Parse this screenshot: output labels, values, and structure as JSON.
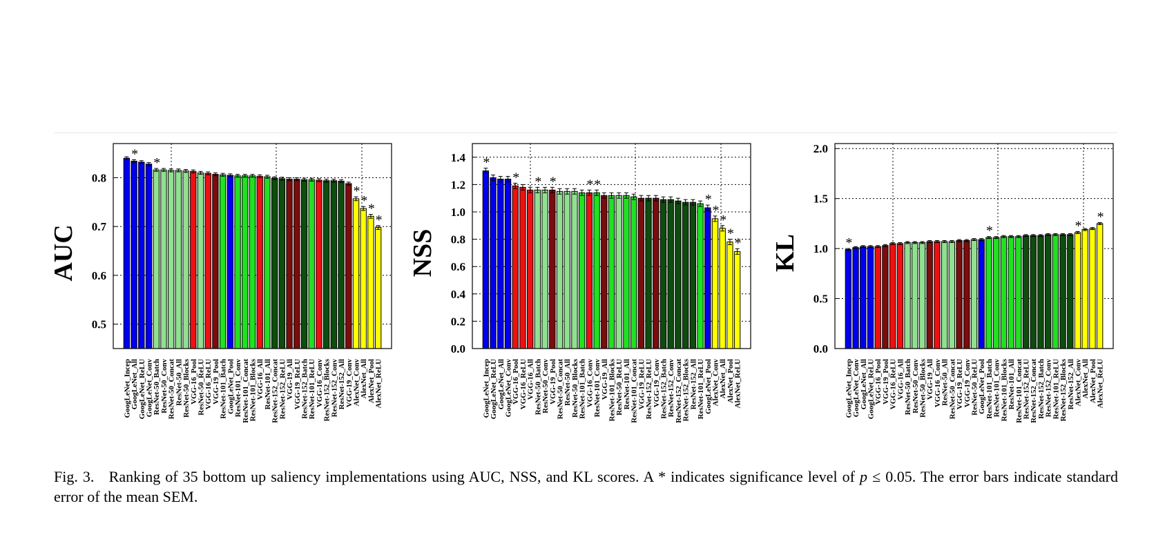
{
  "caption": {
    "fig_label": "Fig. 3.",
    "text_before": "Ranking of 35 bottom up saliency implementations using AUC, NSS, and KL scores. A * indicates significance level of",
    "var": "p",
    "math": " ≤ 0.05",
    "text_after": ". The error bars indicate standard error of the mean SEM."
  },
  "colors": {
    "GoogLeNet": "#0000ee",
    "VGG-16": "#ee1111",
    "VGG-19": "#7a0d0d",
    "ResNet-50": "#90e090",
    "ResNet-101": "#22e022",
    "ResNet-152": "#0d4d0d",
    "AlexNet": "#ffff00"
  },
  "chart_data": [
    {
      "type": "bar",
      "ylabel": "AUC",
      "ylim": [
        0.45,
        0.87
      ],
      "yticks": [
        "0.5",
        "0.6",
        "0.7",
        "0.8"
      ],
      "grid": "dotted",
      "categories": [
        "GoogLeNet_Incep",
        "GoogLeNet_All",
        "GoogLeNet_ReLU",
        "GoogLeNet_Conv",
        "ResNet-50_Batch",
        "ResNet-50_Conv",
        "ResNet-50_Concat",
        "ResNet-50_All",
        "ResNet-50_Blocks",
        "VGG-16_Pool",
        "ResNet-50_ReLU",
        "VGG-16_ReLU",
        "VGG-19_Pool",
        "ResNet-101_Batch",
        "GoogLeNet_Pool",
        "ResNet-101_Conv",
        "ResNet-101_Concat",
        "ResNet-101_Blocks",
        "VGG-16_All",
        "ResNet-101_All",
        "ResNet-152_Concat",
        "ResNet-152_ReLU",
        "VGG-19_All",
        "VGG-19_ReLU",
        "ResNet-152_Batch",
        "ResNet-101_ReLU",
        "VGG-16_Conv",
        "ResNet-152_Blocks",
        "ResNet-152_Conv",
        "ResNet-152_All",
        "VGG-19_Conv",
        "AlexNet_Conv",
        "AlexNet_All",
        "AlexNet_Pool",
        "AlexNet_ReLU"
      ],
      "values": [
        0.84,
        0.834,
        0.832,
        0.828,
        0.816,
        0.816,
        0.815,
        0.815,
        0.814,
        0.813,
        0.81,
        0.809,
        0.807,
        0.806,
        0.805,
        0.804,
        0.804,
        0.804,
        0.803,
        0.802,
        0.799,
        0.798,
        0.797,
        0.797,
        0.796,
        0.796,
        0.795,
        0.794,
        0.794,
        0.793,
        0.788,
        0.757,
        0.737,
        0.721,
        0.698
      ],
      "errors": [
        0.003,
        0.003,
        0.003,
        0.003,
        0.003,
        0.003,
        0.003,
        0.003,
        0.003,
        0.003,
        0.003,
        0.003,
        0.003,
        0.003,
        0.003,
        0.003,
        0.003,
        0.003,
        0.003,
        0.003,
        0.003,
        0.003,
        0.003,
        0.003,
        0.003,
        0.003,
        0.003,
        0.003,
        0.003,
        0.003,
        0.003,
        0.004,
        0.004,
        0.004,
        0.004
      ],
      "significant": [
        false,
        true,
        false,
        false,
        true,
        false,
        false,
        false,
        false,
        false,
        false,
        false,
        false,
        false,
        false,
        false,
        false,
        false,
        false,
        false,
        false,
        false,
        false,
        false,
        false,
        false,
        false,
        false,
        false,
        false,
        false,
        true,
        true,
        true,
        true
      ]
    },
    {
      "type": "bar",
      "ylabel": "NSS",
      "ylim": [
        0.0,
        1.5
      ],
      "yticks": [
        "0.0",
        "0.2",
        "0.4",
        "0.6",
        "0.8",
        "1.0",
        "1.2",
        "1.4"
      ],
      "grid": "dotted",
      "categories": [
        "GoogLeNet_Incep",
        "GoogLeNet_ReLU",
        "GoogLeNet_All",
        "GoogLeNet_Conv",
        "VGG-16_Pool",
        "VGG-16_ReLU",
        "VGG-16_All",
        "ResNet-50_Batch",
        "ResNet-50_Conv",
        "VGG-19_Pool",
        "ResNet-50_Concat",
        "ResNet-50_All",
        "ResNet-50_Blocks",
        "ResNet-101_Batch",
        "VGG-16_Conv",
        "ResNet-101_Conv",
        "VGG-19_All",
        "ResNet-101_Blocks",
        "ResNet-50_ReLU",
        "ResNet-101_All",
        "ResNet-101_Concat",
        "VGG-19_ReLU",
        "ResNet-152_ReLU",
        "VGG-19_Conv",
        "ResNet-152_Batch",
        "ResNet-152_Conv",
        "ResNet-152_Concat",
        "ResNet-152_Blocks",
        "ResNet-152_All",
        "ResNet-101_ReLU",
        "GoogLeNet_Pool",
        "AlexNet_Conv",
        "AlexNet_All",
        "AlexNet_Pool",
        "AlexNet_ReLU"
      ],
      "values": [
        1.3,
        1.25,
        1.24,
        1.24,
        1.19,
        1.18,
        1.16,
        1.16,
        1.16,
        1.16,
        1.15,
        1.15,
        1.15,
        1.14,
        1.14,
        1.14,
        1.12,
        1.12,
        1.12,
        1.12,
        1.11,
        1.1,
        1.1,
        1.1,
        1.09,
        1.09,
        1.08,
        1.07,
        1.07,
        1.06,
        1.03,
        0.95,
        0.88,
        0.78,
        0.71
      ],
      "errors": [
        0.02,
        0.02,
        0.02,
        0.02,
        0.02,
        0.02,
        0.02,
        0.02,
        0.02,
        0.02,
        0.02,
        0.02,
        0.02,
        0.02,
        0.02,
        0.02,
        0.02,
        0.02,
        0.02,
        0.02,
        0.02,
        0.02,
        0.02,
        0.02,
        0.02,
        0.02,
        0.02,
        0.02,
        0.02,
        0.02,
        0.02,
        0.02,
        0.02,
        0.02,
        0.02
      ],
      "significant": [
        true,
        false,
        false,
        false,
        true,
        false,
        false,
        true,
        false,
        true,
        false,
        false,
        false,
        false,
        true,
        true,
        false,
        false,
        false,
        false,
        false,
        false,
        false,
        false,
        false,
        false,
        false,
        false,
        false,
        false,
        true,
        true,
        true,
        true,
        true
      ]
    },
    {
      "type": "bar",
      "ylabel": "KL",
      "ylim": [
        0.0,
        2.05
      ],
      "yticks": [
        "0.0",
        "0.5",
        "1.0",
        "1.5",
        "2.0"
      ],
      "grid": "dotted",
      "categories": [
        "GoogLeNet_Incep",
        "GoogLeNet_Conv",
        "GoogLeNet_All",
        "GoogLeNet_ReLU",
        "VGG-16_Pool",
        "VGG-19_Pool",
        "VGG-16_ReLU",
        "VGG-16_All",
        "ResNet-50_Batch",
        "ResNet-50_Conv",
        "ResNet-50_Blocks",
        "VGG-19_All",
        "VGG-16_Conv",
        "ResNet-50_All",
        "ResNet-50_Concat",
        "VGG-19_ReLU",
        "VGG-19_Conv",
        "ResNet-50_ReLU",
        "GoogLeNet_Pool",
        "ResNet-101_Batch",
        "ResNet-101_Conv",
        "ResNet-101_Blocks",
        "ResNet-101_All",
        "ResNet-101_Concat",
        "ResNet-152_ReLU",
        "ResNet-152_Concat",
        "ResNet-152_Batch",
        "ResNet-152_Conv",
        "ResNet-101_ReLU",
        "ResNet-152_Blocks",
        "ResNet-152_All",
        "AlexNet_Conv",
        "AlexNet_All",
        "AlexNet_Pool",
        "AlexNet_ReLU"
      ],
      "values": [
        0.99,
        1.01,
        1.02,
        1.02,
        1.02,
        1.03,
        1.05,
        1.05,
        1.06,
        1.06,
        1.06,
        1.07,
        1.07,
        1.07,
        1.07,
        1.08,
        1.08,
        1.09,
        1.09,
        1.11,
        1.11,
        1.12,
        1.12,
        1.12,
        1.13,
        1.13,
        1.13,
        1.14,
        1.14,
        1.14,
        1.14,
        1.16,
        1.19,
        1.2,
        1.25
      ],
      "errors": [
        0.01,
        0.01,
        0.01,
        0.01,
        0.01,
        0.01,
        0.01,
        0.01,
        0.01,
        0.01,
        0.01,
        0.01,
        0.01,
        0.01,
        0.01,
        0.01,
        0.01,
        0.01,
        0.01,
        0.01,
        0.01,
        0.01,
        0.01,
        0.01,
        0.01,
        0.01,
        0.01,
        0.01,
        0.01,
        0.01,
        0.01,
        0.01,
        0.01,
        0.01,
        0.01
      ],
      "significant": [
        true,
        false,
        false,
        false,
        false,
        false,
        false,
        false,
        false,
        false,
        false,
        false,
        false,
        false,
        false,
        false,
        false,
        false,
        false,
        true,
        false,
        false,
        false,
        false,
        false,
        false,
        false,
        false,
        false,
        false,
        false,
        true,
        false,
        false,
        true
      ]
    }
  ]
}
